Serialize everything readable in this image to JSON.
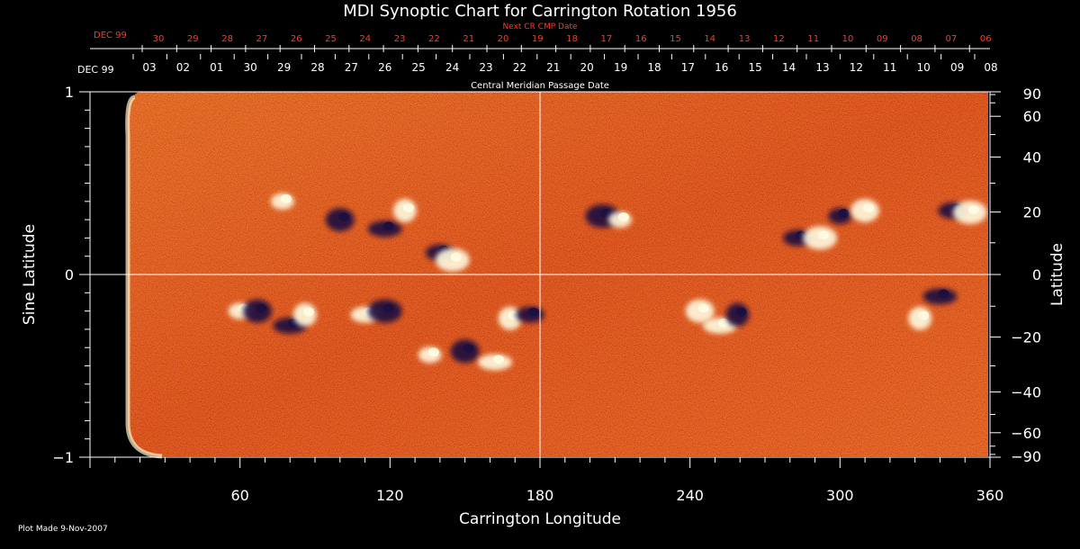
{
  "title": "MDI Synoptic Chart for Carrington Rotation 1956",
  "top_axis_next": {
    "label": "Next CR CMP Date",
    "month_label": "DEC 99",
    "ticks": [
      "30",
      "29",
      "28",
      "27",
      "26",
      "25",
      "24",
      "23",
      "22",
      "21",
      "20",
      "19",
      "18",
      "17",
      "16",
      "15",
      "14",
      "13",
      "12",
      "11",
      "10",
      "09",
      "08",
      "07",
      "06"
    ]
  },
  "top_axis_cmp": {
    "label": "Central Meridian Passage Date",
    "month_label": "DEC 99",
    "ticks": [
      "03",
      "02",
      "01",
      "30",
      "29",
      "28",
      "27",
      "26",
      "25",
      "24",
      "23",
      "22",
      "21",
      "20",
      "19",
      "18",
      "17",
      "16",
      "15",
      "14",
      "13",
      "12",
      "11",
      "10",
      "09",
      "08"
    ]
  },
  "x_axis": {
    "label": "Carrington Longitude",
    "range": [
      0,
      360
    ],
    "ticks": [
      60,
      120,
      180,
      240,
      300,
      360
    ]
  },
  "y_axis_left": {
    "label": "Sine Latitude",
    "range": [
      -1,
      1
    ],
    "ticks": [
      {
        "value": 1,
        "label": "1"
      },
      {
        "value": 0,
        "label": "0"
      },
      {
        "value": -1,
        "label": "−1"
      }
    ]
  },
  "y_axis_right": {
    "label": "Latitude",
    "ticks": [
      90,
      60,
      40,
      20,
      0,
      -20,
      -40,
      -60,
      -90
    ],
    "tick_labels": [
      "90",
      "60",
      "40",
      "20",
      "0",
      "−20",
      "−40",
      "−60",
      "−90"
    ]
  },
  "reference_lines": {
    "equator_sinlat": 0,
    "meridian_longitude": 180
  },
  "footer": "Plot Made  9-Nov-2007",
  "colors": {
    "background": "#000000",
    "axes": "#ffffff",
    "next_axis": "#ff3b1f",
    "field_base": "#e8501a",
    "positive_polarity": "#fffbe0",
    "negative_polarity": "#1a1040"
  },
  "active_regions": [
    {
      "lon": 77,
      "sinlat": 0.4,
      "polarity": "positive"
    },
    {
      "lon": 100,
      "sinlat": 0.3,
      "polarity": "negative"
    },
    {
      "lon": 118,
      "sinlat": 0.25,
      "polarity": "negative"
    },
    {
      "lon": 126,
      "sinlat": 0.35,
      "polarity": "positive"
    },
    {
      "lon": 140,
      "sinlat": 0.12,
      "polarity": "negative"
    },
    {
      "lon": 145,
      "sinlat": 0.08,
      "polarity": "positive"
    },
    {
      "lon": 60,
      "sinlat": -0.2,
      "polarity": "positive"
    },
    {
      "lon": 67,
      "sinlat": -0.2,
      "polarity": "negative"
    },
    {
      "lon": 80,
      "sinlat": -0.28,
      "polarity": "negative"
    },
    {
      "lon": 86,
      "sinlat": -0.22,
      "polarity": "positive"
    },
    {
      "lon": 110,
      "sinlat": -0.22,
      "polarity": "positive"
    },
    {
      "lon": 118,
      "sinlat": -0.2,
      "polarity": "negative"
    },
    {
      "lon": 136,
      "sinlat": -0.44,
      "polarity": "positive"
    },
    {
      "lon": 150,
      "sinlat": -0.42,
      "polarity": "negative"
    },
    {
      "lon": 162,
      "sinlat": -0.48,
      "polarity": "positive"
    },
    {
      "lon": 168,
      "sinlat": -0.24,
      "polarity": "positive"
    },
    {
      "lon": 176,
      "sinlat": -0.22,
      "polarity": "negative"
    },
    {
      "lon": 205,
      "sinlat": 0.32,
      "polarity": "negative"
    },
    {
      "lon": 212,
      "sinlat": 0.3,
      "polarity": "positive"
    },
    {
      "lon": 244,
      "sinlat": -0.2,
      "polarity": "positive"
    },
    {
      "lon": 252,
      "sinlat": -0.28,
      "polarity": "positive"
    },
    {
      "lon": 259,
      "sinlat": -0.22,
      "polarity": "negative"
    },
    {
      "lon": 283,
      "sinlat": 0.2,
      "polarity": "negative"
    },
    {
      "lon": 292,
      "sinlat": 0.2,
      "polarity": "positive"
    },
    {
      "lon": 300,
      "sinlat": 0.32,
      "polarity": "negative"
    },
    {
      "lon": 310,
      "sinlat": 0.35,
      "polarity": "positive"
    },
    {
      "lon": 340,
      "sinlat": -0.12,
      "polarity": "negative"
    },
    {
      "lon": 332,
      "sinlat": -0.24,
      "polarity": "positive"
    },
    {
      "lon": 345,
      "sinlat": 0.35,
      "polarity": "negative"
    },
    {
      "lon": 352,
      "sinlat": 0.34,
      "polarity": "positive"
    }
  ]
}
